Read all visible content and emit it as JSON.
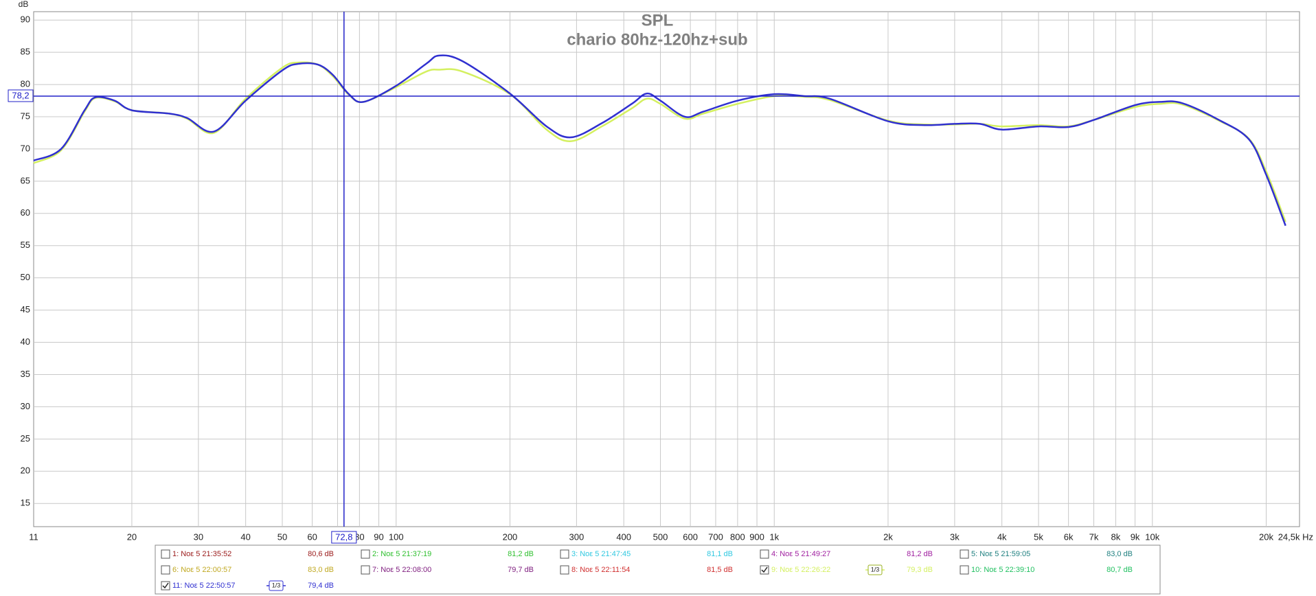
{
  "chart_data": {
    "type": "line",
    "title": "SPL",
    "subtitle": "chario 80hz-120hz+sub",
    "ylabel": "dB",
    "xscale": "log",
    "grid": true,
    "xlim": [
      11,
      24500
    ],
    "ylim": [
      11.4,
      91.3
    ],
    "yticks": [
      15,
      20,
      25,
      30,
      35,
      40,
      45,
      50,
      55,
      60,
      65,
      70,
      75,
      80,
      85,
      90
    ],
    "xticks": [
      11,
      20,
      30,
      40,
      50,
      60,
      70,
      80,
      90,
      100,
      200,
      300,
      400,
      500,
      600,
      700,
      800,
      900,
      {
        "value": 1000,
        "label": "1k"
      },
      {
        "value": 2000,
        "label": "2k"
      },
      {
        "value": 3000,
        "label": "3k"
      },
      {
        "value": 4000,
        "label": "4k"
      },
      {
        "value": 5000,
        "label": "5k"
      },
      {
        "value": 6000,
        "label": "6k"
      },
      {
        "value": 7000,
        "label": "7k"
      },
      {
        "value": 8000,
        "label": "8k"
      },
      {
        "value": 9000,
        "label": "9k"
      },
      {
        "value": 10000,
        "label": "10k"
      },
      {
        "value": 20000,
        "label": "20k"
      },
      {
        "value": 24500,
        "label": "24,5k Hz"
      }
    ],
    "cursor": {
      "x": {
        "value": 72.8,
        "label": "72,8"
      },
      "y": {
        "value": 78.2,
        "label": "78,2"
      },
      "color": "#2020c8"
    },
    "x": [
      11,
      13,
      15,
      16,
      18,
      20,
      25,
      28,
      33,
      40,
      50,
      55,
      62,
      68,
      75,
      82,
      100,
      120,
      130,
      150,
      200,
      250,
      290,
      350,
      420,
      460,
      500,
      580,
      650,
      800,
      1000,
      1200,
      1400,
      2000,
      2500,
      3000,
      3500,
      4000,
      5000,
      6000,
      7000,
      9000,
      10500,
      12000,
      15000,
      18000,
      20000,
      22500
    ],
    "series": [
      {
        "name": "1: Νοε 5 21:35:52",
        "level": "80,6 dB",
        "color": "#9a1a1a",
        "checked": false
      },
      {
        "name": "2: Νοε 5 21:37:19",
        "level": "81,2 dB",
        "color": "#30c030",
        "checked": false
      },
      {
        "name": "3: Νοε 5 21:47:45",
        "level": "81,1 dB",
        "color": "#30c8e0",
        "checked": false
      },
      {
        "name": "4: Νοε 5 21:49:27",
        "level": "81,2 dB",
        "color": "#a020a0",
        "checked": false
      },
      {
        "name": "5: Νοε 5 21:59:05",
        "level": "83,0 dB",
        "color": "#208080",
        "checked": false
      },
      {
        "name": "6: Νοε 5 22:00:57",
        "level": "83,0 dB",
        "color": "#c0a820",
        "checked": false
      },
      {
        "name": "7: Νοε 5 22:08:00",
        "level": "79,7 dB",
        "color": "#802080",
        "checked": false
      },
      {
        "name": "8: Νοε 5 22:11:54",
        "level": "81,5 dB",
        "color": "#d03030",
        "checked": false
      },
      {
        "name": "9: Νοε 5 22:26:22",
        "level": "79,3 dB",
        "color": "#d4f060",
        "checked": true,
        "smoothing": "1/3",
        "values": [
          67.8,
          69.8,
          75.8,
          77.9,
          77.4,
          76,
          75.5,
          74.7,
          72.5,
          77.8,
          82.6,
          83.4,
          83.1,
          81.3,
          78.4,
          77.3,
          79.6,
          82.0,
          82.3,
          82.0,
          78.5,
          73.0,
          71.2,
          73.5,
          76.3,
          77.8,
          77.0,
          74.7,
          75.5,
          77.0,
          78.2,
          78.1,
          77.6,
          74.4,
          73.8,
          73.8,
          73.9,
          73.5,
          73.7,
          73.5,
          74.5,
          76.5,
          77.0,
          76.9,
          74.4,
          71.6,
          66.5,
          58.7
        ]
      },
      {
        "name": "10: Νοε 5 22:39:10",
        "level": "80,7 dB",
        "color": "#20c060",
        "checked": false
      },
      {
        "name": "11: Νοε 5 22:50:57",
        "level": "79,4 dB",
        "color": "#3030d0",
        "checked": true,
        "smoothing": "1/3",
        "values": [
          68.2,
          70,
          76,
          78,
          77.5,
          76,
          75.5,
          74.8,
          72.7,
          77.5,
          82.2,
          83.2,
          83.1,
          81.5,
          78.5,
          77.3,
          79.8,
          83.2,
          84.5,
          83.6,
          78.6,
          73.5,
          71.8,
          74,
          77,
          78.6,
          77.5,
          75,
          75.8,
          77.5,
          78.5,
          78.2,
          77.8,
          74.3,
          73.7,
          73.9,
          73.9,
          73,
          73.5,
          73.4,
          74.5,
          76.8,
          77.3,
          77.1,
          74.5,
          71.5,
          66,
          58.1
        ]
      }
    ]
  }
}
